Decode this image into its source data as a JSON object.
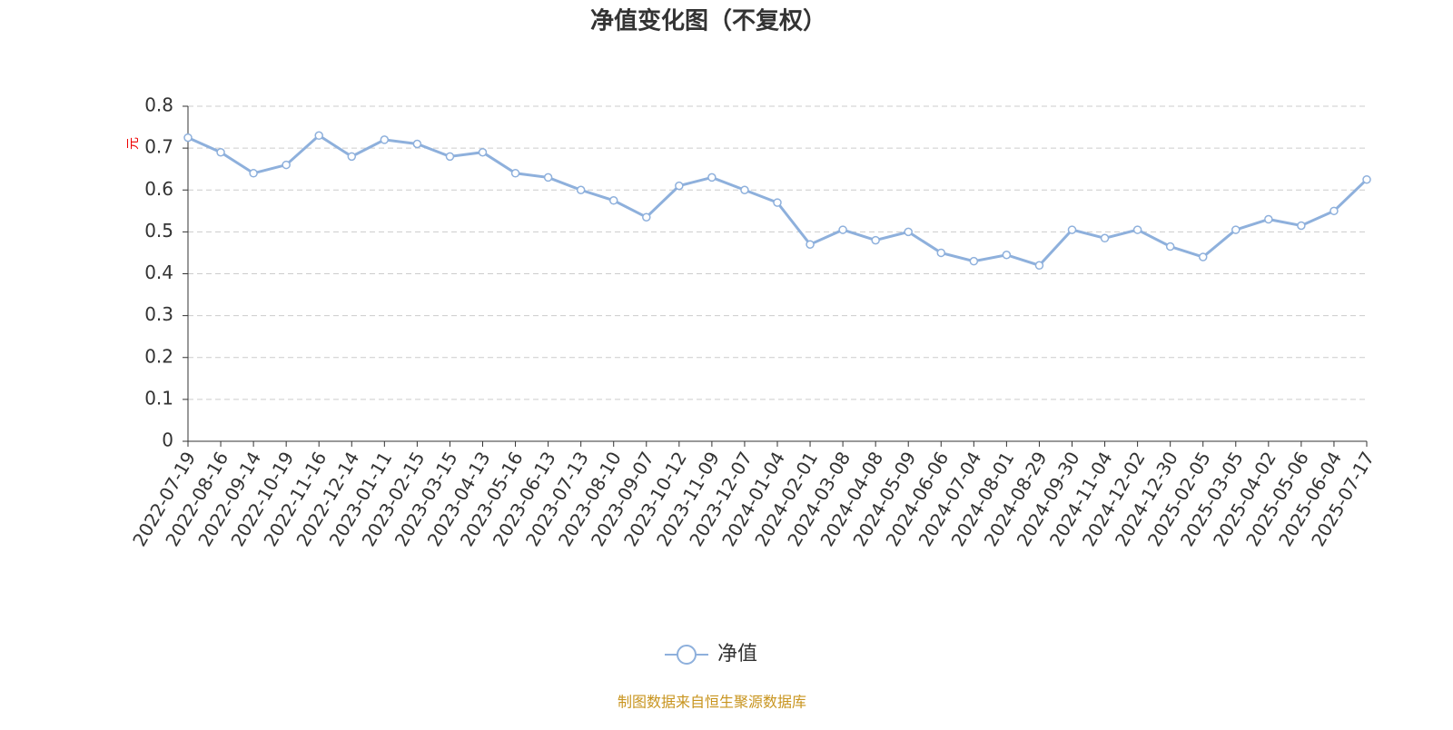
{
  "chart_data": {
    "type": "line",
    "title": "净值变化图（不复权）",
    "y_label": "元",
    "source": "制图数据来自恒生聚源数据库",
    "categories": [
      "2022-07-19",
      "2022-08-16",
      "2022-09-14",
      "2022-10-19",
      "2022-11-16",
      "2022-12-14",
      "2023-01-11",
      "2023-02-15",
      "2023-03-15",
      "2023-04-13",
      "2023-05-16",
      "2023-06-13",
      "2023-07-13",
      "2023-08-10",
      "2023-09-07",
      "2023-10-12",
      "2023-11-09",
      "2023-12-07",
      "2024-01-04",
      "2024-02-01",
      "2024-03-08",
      "2024-04-08",
      "2024-05-09",
      "2024-06-06",
      "2024-07-04",
      "2024-08-01",
      "2024-08-29",
      "2024-09-30",
      "2024-11-04",
      "2024-12-02",
      "2024-12-30",
      "2025-02-05",
      "2025-03-05",
      "2025-04-02",
      "2025-05-06",
      "2025-06-04",
      "2025-07-17"
    ],
    "series": [
      {
        "name": "净值",
        "color": "#8eb0dc",
        "values": [
          0.725,
          0.69,
          0.64,
          0.66,
          0.73,
          0.68,
          0.72,
          0.71,
          0.68,
          0.69,
          0.64,
          0.63,
          0.6,
          0.575,
          0.535,
          0.61,
          0.63,
          0.6,
          0.57,
          0.47,
          0.505,
          0.48,
          0.5,
          0.45,
          0.43,
          0.445,
          0.42,
          0.505,
          0.485,
          0.505,
          0.465,
          0.44,
          0.505,
          0.53,
          0.515,
          0.55,
          0.625
        ]
      }
    ],
    "ylim": [
      0,
      0.8
    ],
    "yticks": [
      0,
      0.1,
      0.2,
      0.3,
      0.4,
      0.5,
      0.6,
      0.7,
      0.8
    ],
    "grid": true
  }
}
